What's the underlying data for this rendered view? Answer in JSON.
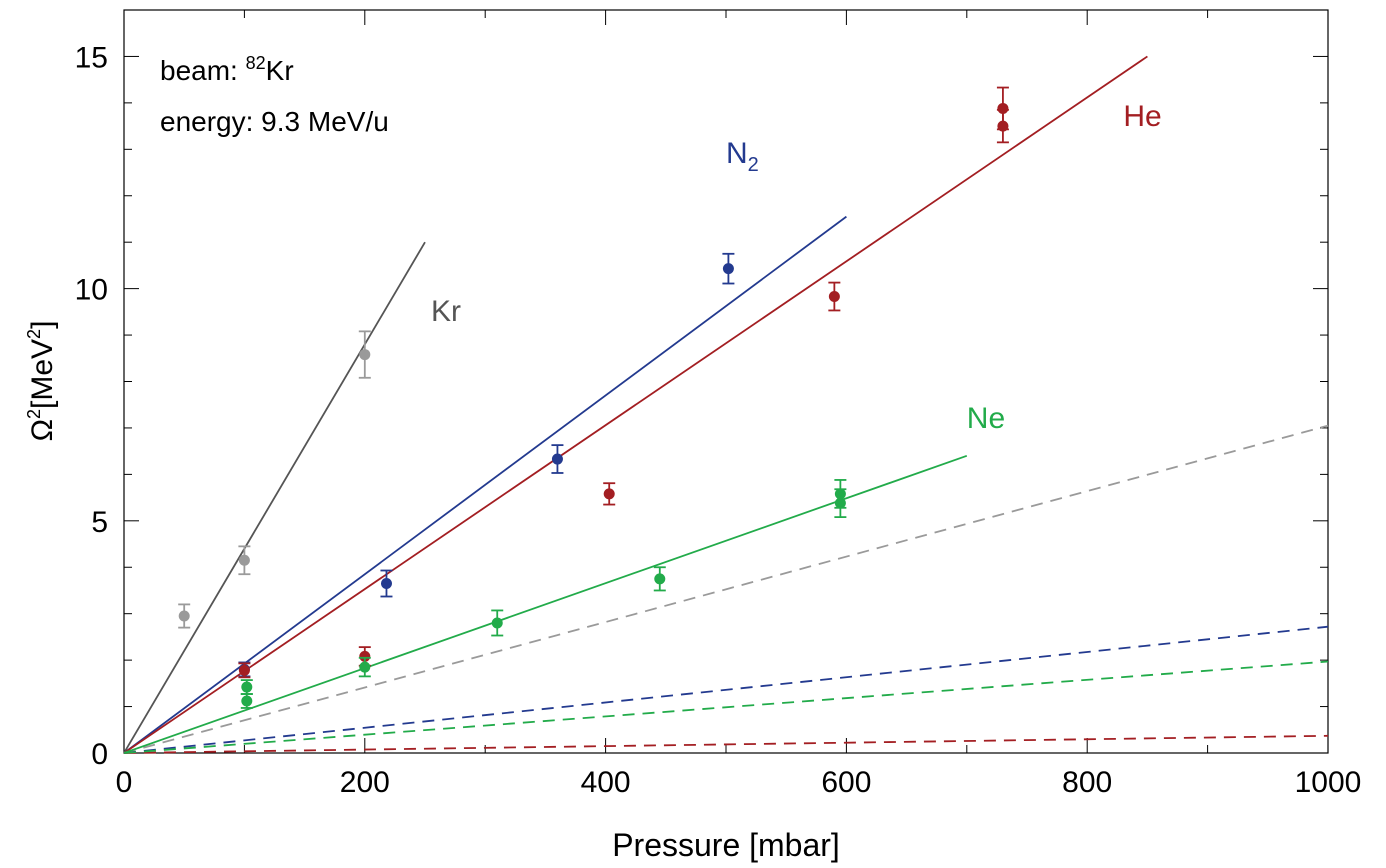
{
  "chart_data": {
    "type": "scatter",
    "title": "",
    "xlabel": "Pressure [mbar]",
    "ylabel": {
      "main": "Ω",
      "sup": "2",
      "unit_pre": "[MeV",
      "unit_sup": "2",
      "unit_post": "]"
    },
    "xlim": [
      0,
      1000
    ],
    "ylim": [
      0,
      16
    ],
    "xticks": [
      0,
      200,
      400,
      600,
      800,
      1000
    ],
    "yticks": [
      0,
      5,
      10,
      15
    ],
    "grid": false,
    "annotations": {
      "beam_prefix": "beam: ",
      "beam_mass": "82",
      "beam_element": "Kr",
      "energy": "energy: 9.3 MeV/u"
    },
    "series": [
      {
        "name": "Kr",
        "color": "#555555",
        "marker_color": "#9a9a9a",
        "label": {
          "text": "Kr",
          "sub": "",
          "x": 255,
          "y": 9.3
        },
        "fit": [
          [
            0,
            0
          ],
          [
            250,
            11
          ]
        ],
        "dashed": [
          [
            0,
            0
          ],
          [
            1000,
            7.05
          ]
        ],
        "dashed_color": "#9a9a9a",
        "points": [
          [
            50,
            2.95,
            0.25
          ],
          [
            100,
            4.15,
            0.3
          ],
          [
            200,
            8.58,
            0.5
          ]
        ]
      },
      {
        "name": "N2",
        "color": "#233a8f",
        "marker_color": "#233a8f",
        "label": {
          "text": "N",
          "sub": "2",
          "x": 500,
          "y": 12.7
        },
        "fit": [
          [
            0,
            0
          ],
          [
            600,
            11.55
          ]
        ],
        "dashed": [
          [
            0,
            0
          ],
          [
            1000,
            2.72
          ]
        ],
        "dashed_color": "#233a8f",
        "points": [
          [
            100,
            1.8,
            0.15
          ],
          [
            218,
            3.65,
            0.28
          ],
          [
            360,
            6.33,
            0.3
          ],
          [
            502,
            10.43,
            0.32
          ]
        ]
      },
      {
        "name": "He",
        "color": "#a31e22",
        "marker_color": "#a31e22",
        "label": {
          "text": "He",
          "sub": "",
          "x": 830,
          "y": 13.5
        },
        "fit": [
          [
            0,
            0
          ],
          [
            850,
            15
          ]
        ],
        "dashed": [
          [
            0,
            0
          ],
          [
            1000,
            0.37
          ]
        ],
        "dashed_color": "#a31e22",
        "points": [
          [
            100,
            1.78,
            0.15
          ],
          [
            200,
            2.08,
            0.2
          ],
          [
            403,
            5.58,
            0.23
          ],
          [
            590,
            9.83,
            0.3
          ],
          [
            730,
            13.5,
            0.35
          ],
          [
            730,
            13.88,
            0.45
          ]
        ]
      },
      {
        "name": "Ne",
        "color": "#22ab4a",
        "marker_color": "#22ab4a",
        "label": {
          "text": "Ne",
          "sub": "",
          "x": 700,
          "y": 7.0
        },
        "fit": [
          [
            0,
            0
          ],
          [
            700,
            6.4
          ]
        ],
        "dashed": [
          [
            0,
            0
          ],
          [
            1000,
            1.97
          ]
        ],
        "dashed_color": "#22ab4a",
        "points": [
          [
            102,
            1.42,
            0.15
          ],
          [
            102,
            1.12,
            0.15
          ],
          [
            200,
            1.85,
            0.2
          ],
          [
            310,
            2.8,
            0.27
          ],
          [
            445,
            3.75,
            0.25
          ],
          [
            595,
            5.38,
            0.3
          ],
          [
            595,
            5.58,
            0.3
          ]
        ]
      }
    ]
  }
}
